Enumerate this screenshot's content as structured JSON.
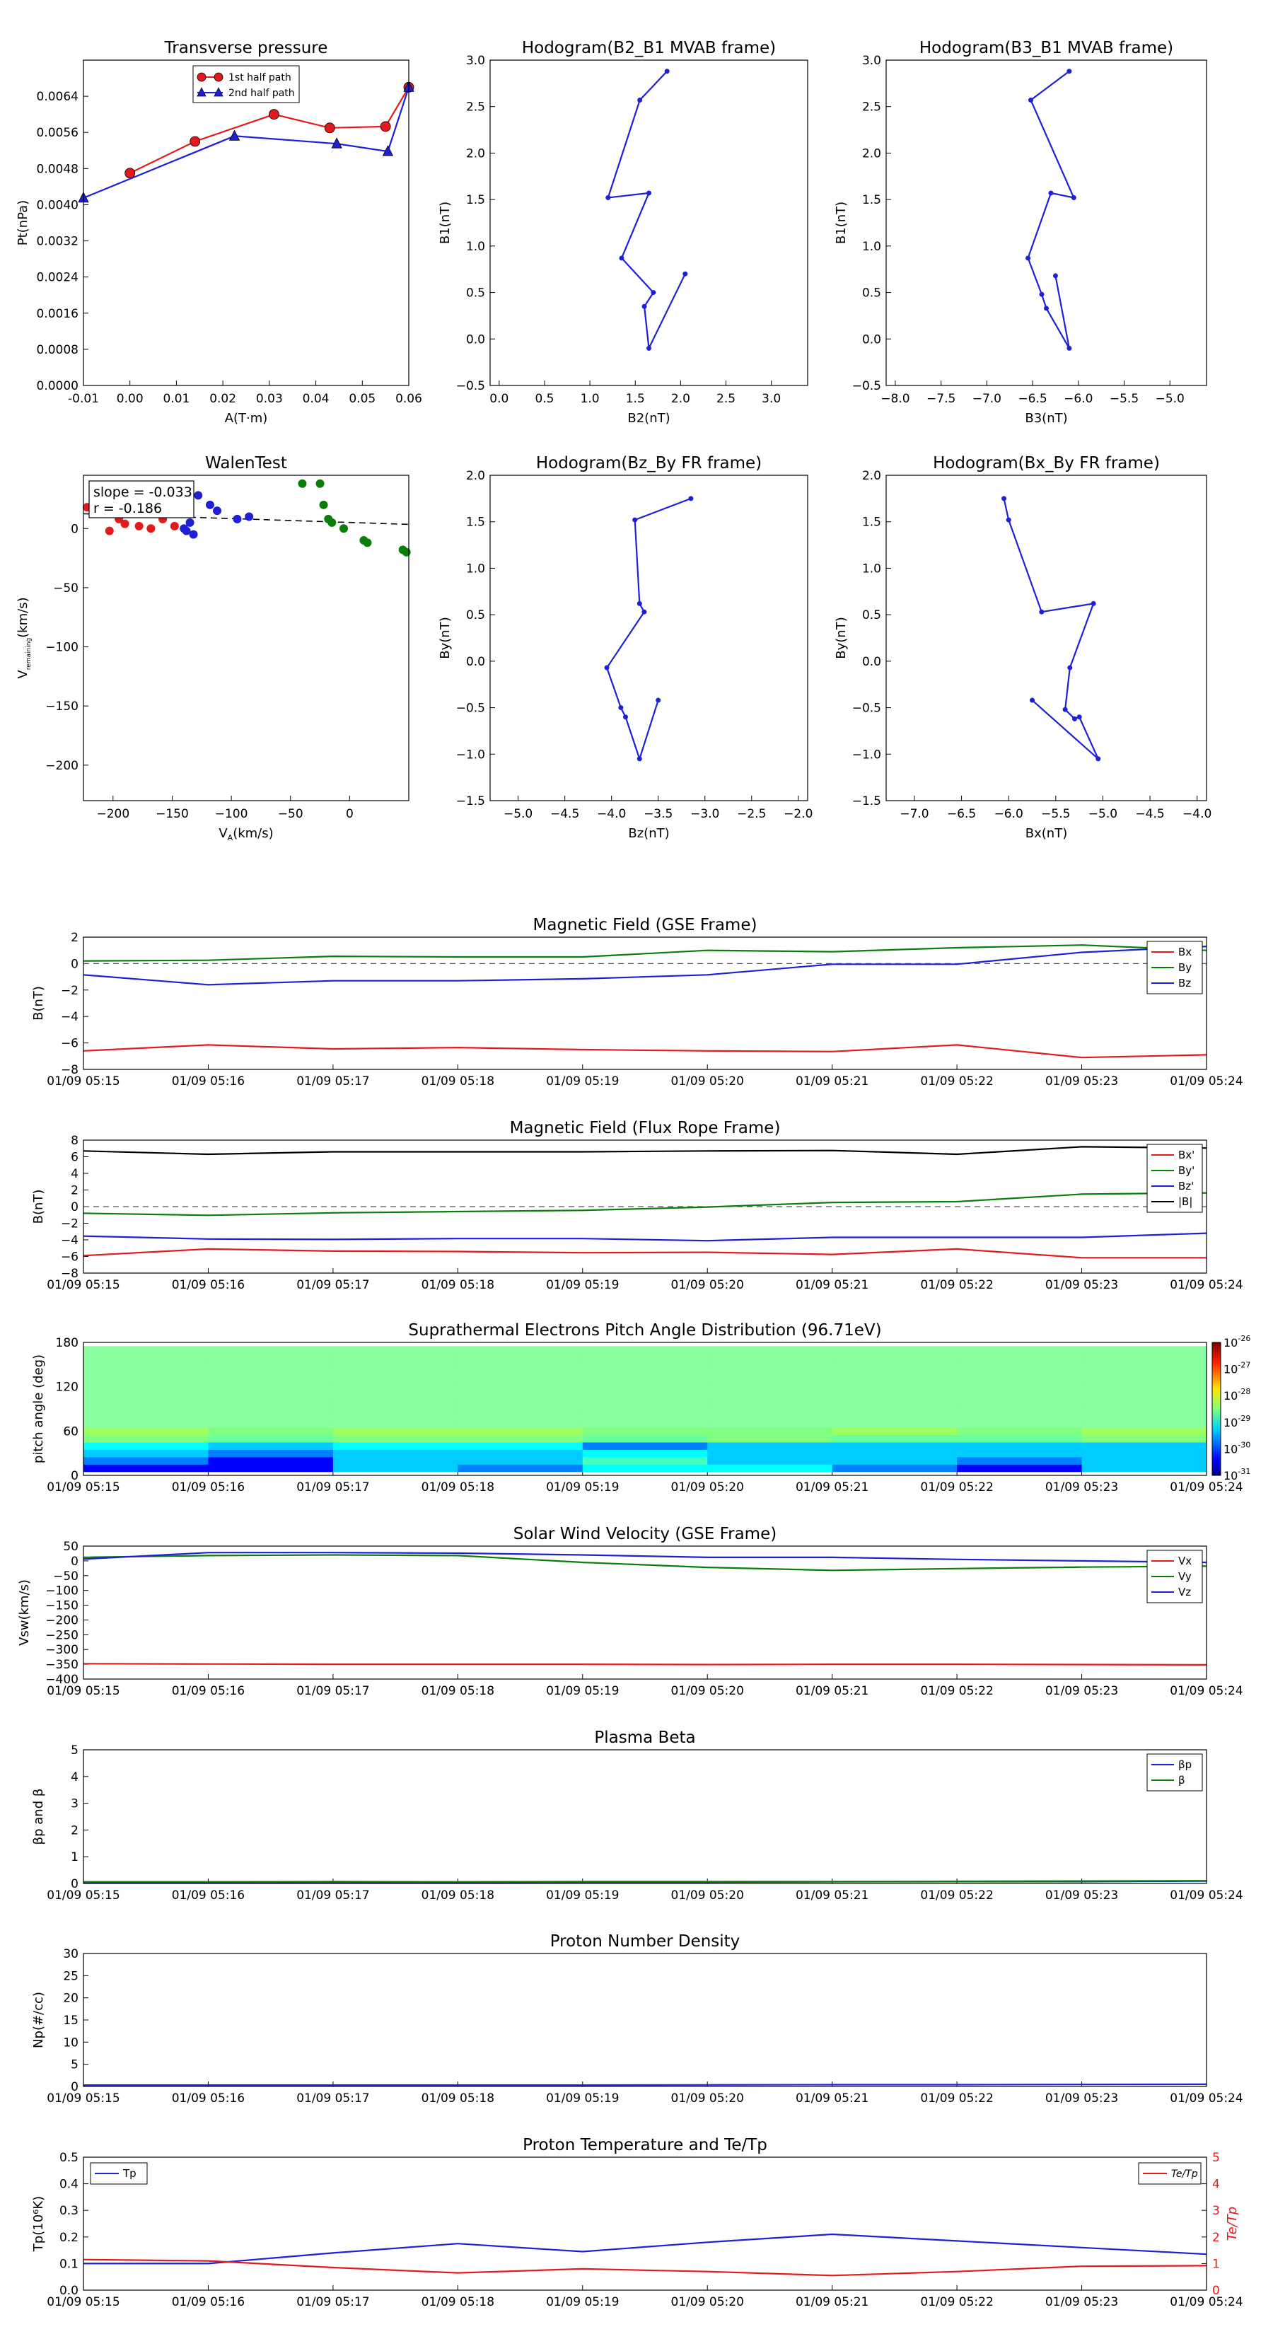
{
  "chart_data": [
    {
      "id": "pt",
      "type": "scatter",
      "title": "Transverse pressure",
      "xlabel": "A(T·m)",
      "ylabel": "Pt(nPa)",
      "xlim": [
        -0.01,
        0.06
      ],
      "ylim": [
        0,
        0.0072
      ],
      "xticks": [
        "-0.01",
        "0.00",
        "0.01",
        "0.02",
        "0.03",
        "0.04",
        "0.05",
        "0.06"
      ],
      "xtick_values": [
        -0.01,
        0,
        0.01,
        0.02,
        0.03,
        0.04,
        0.05,
        0.06
      ],
      "yticks": [
        "0.0000",
        "0.0008",
        "0.0016",
        "0.0024",
        "0.0032",
        "0.0040",
        "0.0048",
        "0.0056",
        "0.0064"
      ],
      "ytick_values": [
        0,
        0.0008,
        0.0016,
        0.0024,
        0.0032,
        0.004,
        0.0048,
        0.0056,
        0.0064
      ],
      "legend": "top-center",
      "series": [
        {
          "name": "1st half path",
          "color": "#e31a1c",
          "marker": "circle",
          "x": [
            0.0,
            0.014,
            0.031,
            0.043,
            0.055,
            0.06
          ],
          "y": [
            0.0047,
            0.0054,
            0.006,
            0.0057,
            0.00573,
            0.0066
          ]
        },
        {
          "name": "2nd half path",
          "color": "#1f1fd6",
          "marker": "triangle",
          "x": [
            -0.01,
            0.0225,
            0.0445,
            0.0555,
            0.06
          ],
          "y": [
            0.00415,
            0.00552,
            0.00535,
            0.00518,
            0.0066
          ]
        }
      ]
    },
    {
      "id": "h21",
      "type": "line",
      "title": "Hodogram(B2_B1 MVAB frame)",
      "xlabel": "B2(nT)",
      "ylabel": "B1(nT)",
      "xlim": [
        -0.1,
        3.4
      ],
      "ylim": [
        -0.5,
        3.0
      ],
      "xticks": [
        "0.0",
        "0.5",
        "1.0",
        "1.5",
        "2.0",
        "2.5",
        "3.0"
      ],
      "xtick_values": [
        0,
        0.5,
        1,
        1.5,
        2,
        2.5,
        3
      ],
      "yticks": [
        "−0.5",
        "0.0",
        "0.5",
        "1.0",
        "1.5",
        "2.0",
        "2.5",
        "3.0"
      ],
      "ytick_values": [
        -0.5,
        0,
        0.5,
        1,
        1.5,
        2,
        2.5,
        3
      ],
      "series": [
        {
          "color": "#1f1fd6",
          "x": [
            2.05,
            1.65,
            1.6,
            1.7,
            1.35,
            1.65,
            1.2,
            1.55,
            1.85
          ],
          "y": [
            0.7,
            -0.1,
            0.35,
            0.5,
            0.87,
            1.57,
            1.52,
            2.57,
            2.88
          ]
        }
      ]
    },
    {
      "id": "h31",
      "type": "line",
      "title": "Hodogram(B3_B1 MVAB frame)",
      "xlabel": "B3(nT)",
      "ylabel": "B1(nT)",
      "xlim": [
        -8.1,
        -4.6
      ],
      "ylim": [
        -0.5,
        3.0
      ],
      "xticks": [
        "−8.0",
        "−7.5",
        "−7.0",
        "−6.5",
        "−6.0",
        "−5.5",
        "−5.0"
      ],
      "xtick_values": [
        -8,
        -7.5,
        -7,
        -6.5,
        -6,
        -5.5,
        -5
      ],
      "yticks": [
        "−0.5",
        "0.0",
        "0.5",
        "1.0",
        "1.5",
        "2.0",
        "2.5",
        "3.0"
      ],
      "ytick_values": [
        -0.5,
        0,
        0.5,
        1,
        1.5,
        2,
        2.5,
        3
      ],
      "series": [
        {
          "color": "#1f1fd6",
          "x": [
            -6.25,
            -6.1,
            -6.35,
            -6.4,
            -6.55,
            -6.3,
            -6.05,
            -6.52,
            -6.1
          ],
          "y": [
            0.68,
            -0.1,
            0.33,
            0.48,
            0.87,
            1.57,
            1.52,
            2.57,
            2.88
          ]
        }
      ]
    },
    {
      "id": "walen",
      "type": "scatter",
      "title": "WalenTest",
      "xlabel": "V_A(km/s)",
      "ylabel": "V_remaining(km/s)",
      "xlim": [
        -225,
        50
      ],
      "ylim": [
        -230,
        45
      ],
      "xticks": [
        "−200",
        "−150",
        "−100",
        "−50",
        "0"
      ],
      "xtick_values": [
        -200,
        -150,
        -100,
        -50,
        0
      ],
      "yticks": [
        "−200",
        "−150",
        "−100",
        "−50",
        "0"
      ],
      "ytick_values": [
        -200,
        -150,
        -100,
        -50,
        0
      ],
      "annotation": [
        "slope = -0.033",
        "r = -0.186"
      ],
      "fit": {
        "slope": -0.033,
        "x": [
          -225,
          50
        ],
        "y": [
          12.5,
          3.5
        ]
      },
      "series": [
        {
          "color": "#e31a1c",
          "x": [
            -222,
            -203,
            -195,
            -190,
            -178,
            -168,
            -158,
            -148
          ],
          "y": [
            18,
            -2,
            8,
            4,
            2,
            0,
            8,
            2
          ]
        },
        {
          "color": "#1f1fd6",
          "x": [
            -140,
            -135,
            -128,
            -118,
            -112,
            -95,
            -85,
            -138,
            -132
          ],
          "y": [
            0,
            5,
            28,
            20,
            15,
            8,
            10,
            -2,
            -5
          ]
        },
        {
          "color": "#0a7d0a",
          "x": [
            -40,
            -25,
            -22,
            -18,
            -15,
            -5,
            12,
            15,
            45,
            48
          ],
          "y": [
            38,
            38,
            20,
            8,
            5,
            0,
            -10,
            -12,
            -18,
            -20
          ]
        }
      ]
    },
    {
      "id": "hzy",
      "type": "line",
      "title": "Hodogram(Bz_By FR frame)",
      "xlabel": "Bz(nT)",
      "ylabel": "By(nT)",
      "xlim": [
        -5.3,
        -1.9
      ],
      "ylim": [
        -1.5,
        2.0
      ],
      "xticks": [
        "−5.0",
        "−4.5",
        "−4.0",
        "−3.5",
        "−3.0",
        "−2.5",
        "−2.0"
      ],
      "xtick_values": [
        -5,
        -4.5,
        -4,
        -3.5,
        -3,
        -2.5,
        -2
      ],
      "yticks": [
        "−1.5",
        "−1.0",
        "−0.5",
        "0.0",
        "0.5",
        "1.0",
        "1.5",
        "2.0"
      ],
      "ytick_values": [
        -1.5,
        -1,
        -0.5,
        0,
        0.5,
        1,
        1.5,
        2
      ],
      "series": [
        {
          "color": "#1f1fd6",
          "x": [
            -3.5,
            -3.7,
            -3.85,
            -3.9,
            -4.05,
            -3.65,
            -3.7,
            -3.75,
            -3.15
          ],
          "y": [
            -0.42,
            -1.05,
            -0.6,
            -0.5,
            -0.07,
            0.53,
            0.62,
            1.52,
            1.75
          ]
        }
      ]
    },
    {
      "id": "hxy",
      "type": "line",
      "title": "Hodogram(Bx_By FR frame)",
      "xlabel": "Bx(nT)",
      "ylabel": "By(nT)",
      "xlim": [
        -7.3,
        -3.9
      ],
      "ylim": [
        -1.5,
        2.0
      ],
      "xticks": [
        "−7.0",
        "−6.5",
        "−6.0",
        "−5.5",
        "−5.0",
        "−4.5",
        "−4.0"
      ],
      "xtick_values": [
        -7,
        -6.5,
        -6,
        -5.5,
        -5,
        -4.5,
        -4
      ],
      "yticks": [
        "−1.5",
        "−1.0",
        "−0.5",
        "0.0",
        "0.5",
        "1.0",
        "1.5",
        "2.0"
      ],
      "ytick_values": [
        -1.5,
        -1,
        -0.5,
        0,
        0.5,
        1,
        1.5,
        2
      ],
      "series": [
        {
          "color": "#1f1fd6",
          "x": [
            -5.75,
            -5.05,
            -5.25,
            -5.3,
            -5.4,
            -5.35,
            -5.1,
            -5.65,
            -6.0,
            -6.05
          ],
          "y": [
            -0.42,
            -1.05,
            -0.6,
            -0.62,
            -0.52,
            -0.07,
            0.62,
            0.53,
            1.52,
            1.75
          ]
        }
      ]
    },
    {
      "id": "bgse",
      "type": "line",
      "title": "Magnetic Field (GSE Frame)",
      "ylabel": "B(nT)",
      "ylim": [
        -8,
        2
      ],
      "yticks": [
        "−8",
        "−6",
        "−4",
        "−2",
        "0",
        "2"
      ],
      "ytick_values": [
        -8,
        -6,
        -4,
        -2,
        0,
        2
      ],
      "zero_line": true,
      "legend": "top-right",
      "series": [
        {
          "name": "Bx",
          "color": "#e31a1c",
          "values": [
            -6.6,
            -6.15,
            -6.45,
            -6.35,
            -6.5,
            -6.6,
            -6.65,
            -6.15,
            -7.1,
            -6.9
          ]
        },
        {
          "name": "By",
          "color": "#0a7d0a",
          "values": [
            0.2,
            0.25,
            0.55,
            0.5,
            0.5,
            1.0,
            0.9,
            1.2,
            1.4,
            1.0
          ]
        },
        {
          "name": "Bz",
          "color": "#1f1fd6",
          "values": [
            -0.85,
            -1.6,
            -1.3,
            -1.3,
            -1.15,
            -0.85,
            -0.05,
            -0.05,
            0.85,
            1.3
          ]
        }
      ]
    },
    {
      "id": "bfr",
      "type": "line",
      "title": "Magnetic Field (Flux Rope Frame)",
      "ylabel": "B(nT)",
      "ylim": [
        -8,
        8
      ],
      "yticks": [
        "−8",
        "−6",
        "−4",
        "−2",
        "0",
        "2",
        "4",
        "6",
        "8"
      ],
      "ytick_values": [
        -8,
        -6,
        -4,
        -2,
        0,
        2,
        4,
        6,
        8
      ],
      "zero_line": true,
      "legend": "top-right",
      "series": [
        {
          "name": "Bx'",
          "color": "#e31a1c",
          "values": [
            -5.9,
            -5.1,
            -5.35,
            -5.4,
            -5.55,
            -5.5,
            -5.75,
            -5.1,
            -6.15,
            -6.15
          ]
        },
        {
          "name": "By'",
          "color": "#0a7d0a",
          "values": [
            -0.8,
            -1.05,
            -0.75,
            -0.6,
            -0.45,
            -0.05,
            0.5,
            0.6,
            1.5,
            1.65
          ]
        },
        {
          "name": "Bz'",
          "color": "#1f1fd6",
          "values": [
            -3.55,
            -3.9,
            -3.95,
            -3.85,
            -3.85,
            -4.1,
            -3.7,
            -3.7,
            -3.7,
            -3.2
          ]
        },
        {
          "name": "|B|",
          "color": "#000000",
          "values": [
            6.7,
            6.3,
            6.6,
            6.6,
            6.6,
            6.7,
            6.75,
            6.3,
            7.2,
            7.05
          ]
        }
      ]
    },
    {
      "id": "pad",
      "type": "heatmap",
      "title": "Suprathermal Electrons Pitch Angle Distribution (96.71eV)",
      "ylabel": "pitch angle (deg)",
      "ylim": [
        0,
        180
      ],
      "yticks": [
        "0",
        "60",
        "120",
        "180"
      ],
      "ytick_values": [
        0,
        60,
        120,
        180
      ],
      "colorbar_ticks": [
        "10",
        "10",
        "10",
        "10",
        "10",
        "10"
      ],
      "colorbar_exponents": [
        "-31",
        "-30",
        "-29",
        "-28",
        "-27",
        "-26"
      ],
      "bins": [
        "15",
        "25",
        "35",
        "45",
        "55",
        "65",
        "75",
        "85",
        "95",
        "105",
        "115",
        "125",
        "135",
        "145",
        "155",
        "165",
        "175"
      ],
      "rows": [
        [
          1,
          1,
          3,
          2,
          4,
          4,
          2,
          1,
          3
        ],
        [
          2,
          1,
          3,
          3,
          5,
          3,
          3,
          2,
          3
        ],
        [
          3,
          2,
          3,
          3,
          4,
          3,
          3,
          3,
          3
        ],
        [
          4,
          3,
          4,
          4,
          2,
          3,
          3,
          3,
          3
        ],
        [
          7,
          6,
          7,
          7,
          6,
          7,
          6,
          6,
          7
        ],
        [
          8,
          7,
          8,
          8,
          7,
          7,
          8,
          7,
          8
        ],
        [
          9,
          9,
          9,
          9,
          9,
          9,
          9,
          9,
          9
        ],
        [
          9,
          9,
          9,
          9,
          9,
          9,
          9,
          9,
          9
        ],
        [
          9,
          9,
          9,
          9,
          9,
          9,
          9,
          9,
          9
        ],
        [
          9,
          9,
          9,
          9,
          9,
          9,
          9,
          9,
          9
        ],
        [
          9,
          9,
          9,
          9,
          9,
          9,
          9,
          9,
          9
        ],
        [
          9,
          9,
          9,
          9,
          9,
          9,
          9,
          9,
          9
        ],
        [
          9,
          9,
          9,
          9,
          9,
          9,
          9,
          9,
          9
        ],
        [
          9,
          9,
          9,
          9,
          9,
          9,
          9,
          9,
          9
        ],
        [
          9,
          9,
          9,
          9,
          9,
          9,
          9,
          9,
          9
        ],
        [
          9,
          9,
          9,
          9,
          9,
          9,
          9,
          9,
          9
        ],
        [
          9,
          9,
          9,
          9,
          9,
          9,
          9,
          9,
          9
        ]
      ]
    },
    {
      "id": "vsw",
      "type": "line",
      "title": "Solar Wind Velocity (GSE Frame)",
      "ylabel": "Vsw(km/s)",
      "ylim": [
        -400,
        50
      ],
      "yticks": [
        "−400",
        "−350",
        "−300",
        "−250",
        "−200",
        "−150",
        "−100",
        "−50",
        "0",
        "50"
      ],
      "ytick_values": [
        -400,
        -350,
        -300,
        -250,
        -200,
        -150,
        -100,
        -50,
        0,
        50
      ],
      "legend": "top-right",
      "series": [
        {
          "name": "Vx",
          "color": "#e31a1c",
          "values": [
            -348,
            -349,
            -350,
            -350,
            -350,
            -351,
            -350,
            -350,
            -351,
            -352
          ]
        },
        {
          "name": "Vy",
          "color": "#0a7d0a",
          "values": [
            12,
            18,
            20,
            18,
            -5,
            -22,
            -32,
            -26,
            -21,
            -18
          ]
        },
        {
          "name": "Vz",
          "color": "#1f1fd6",
          "values": [
            6,
            28,
            28,
            26,
            20,
            12,
            12,
            5,
            0,
            -5
          ]
        }
      ]
    },
    {
      "id": "beta",
      "type": "line",
      "title": "Plasma Beta",
      "ylabel": "βp and β",
      "ylim": [
        0,
        5
      ],
      "yticks": [
        "0",
        "1",
        "2",
        "3",
        "4",
        "5"
      ],
      "ytick_values": [
        0,
        1,
        2,
        3,
        4,
        5
      ],
      "legend": "top-right",
      "series": [
        {
          "name": "βp",
          "color": "#1f1fd6",
          "values": [
            0.03,
            0.03,
            0.04,
            0.04,
            0.05,
            0.05,
            0.06,
            0.07,
            0.07,
            0.09
          ]
        },
        {
          "name": "β",
          "color": "#0a7d0a",
          "values": [
            0.06,
            0.06,
            0.07,
            0.06,
            0.07,
            0.07,
            0.07,
            0.08,
            0.09,
            0.1
          ]
        }
      ]
    },
    {
      "id": "np",
      "type": "line",
      "title": "Proton Number Density",
      "ylabel": "Np(#/cc)",
      "ylim": [
        0,
        30
      ],
      "yticks": [
        "0",
        "5",
        "10",
        "15",
        "20",
        "25",
        "30"
      ],
      "ytick_values": [
        0,
        5,
        10,
        15,
        20,
        25,
        30
      ],
      "series": [
        {
          "color": "#1f1fd6",
          "values": [
            0.3,
            0.3,
            0.3,
            0.3,
            0.3,
            0.35,
            0.4,
            0.4,
            0.45,
            0.5
          ]
        }
      ]
    },
    {
      "id": "tp",
      "type": "line",
      "title": "Proton Temperature and Te/Tp",
      "ylabel": "Tp(10⁶K)",
      "ylabel_right": "Te/Tp",
      "ylim": [
        0,
        0.5
      ],
      "ylim_right": [
        0,
        5
      ],
      "yticks": [
        "0.0",
        "0.1",
        "0.2",
        "0.3",
        "0.4",
        "0.5"
      ],
      "ytick_values": [
        0,
        0.1,
        0.2,
        0.3,
        0.4,
        0.5
      ],
      "yticks_right": [
        "0",
        "1",
        "2",
        "3",
        "4",
        "5"
      ],
      "ytick_values_right": [
        0,
        1,
        2,
        3,
        4,
        5
      ],
      "series": [
        {
          "name": "Tp",
          "color": "#1f1fd6",
          "values": [
            0.1,
            0.1,
            0.14,
            0.175,
            0.145,
            0.18,
            0.21,
            0.185,
            0.16,
            0.135
          ]
        },
        {
          "name": "Te/Tp",
          "color": "#e31a1c",
          "axis": "right",
          "values": [
            1.15,
            1.1,
            0.85,
            0.65,
            0.8,
            0.7,
            0.55,
            0.7,
            0.9,
            0.92
          ]
        }
      ]
    }
  ],
  "time_ticks": [
    "01/09 05:15",
    "01/09 05:16",
    "01/09 05:17",
    "01/09 05:18",
    "01/09 05:19",
    "01/09 05:20",
    "01/09 05:21",
    "01/09 05:22",
    "01/09 05:23",
    "01/09 05:24"
  ]
}
